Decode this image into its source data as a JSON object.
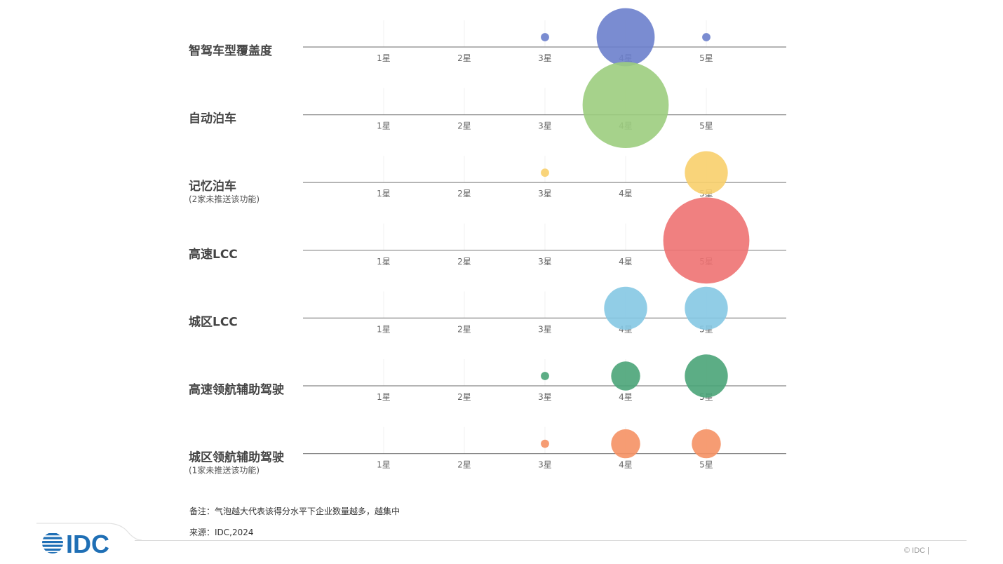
{
  "chart_data": {
    "type": "scatter",
    "subtype": "bubble-strip",
    "x_categories": [
      "1星",
      "2星",
      "3星",
      "4星",
      "5星"
    ],
    "rows": [
      {
        "label": "智驾车型覆盖度",
        "sublabel": "",
        "color": "#6b80cc",
        "points": [
          {
            "x": "3星",
            "size": 0.8
          },
          {
            "x": "4星",
            "size": 10.0
          },
          {
            "x": "5星",
            "size": 0.8
          }
        ]
      },
      {
        "label": "自动泊车",
        "sublabel": "",
        "color": "#9ccd7e",
        "points": [
          {
            "x": "4星",
            "size": 22.0
          }
        ]
      },
      {
        "label": "记忆泊车",
        "sublabel": "(2家未推送该功能)",
        "color": "#f8cf6c",
        "points": [
          {
            "x": "3星",
            "size": 0.8
          },
          {
            "x": "5星",
            "size": 5.5
          }
        ]
      },
      {
        "label": "高速LCC",
        "sublabel": "",
        "color": "#ee7272",
        "points": [
          {
            "x": "5星",
            "size": 22.0
          }
        ]
      },
      {
        "label": "城区LCC",
        "sublabel": "",
        "color": "#85c8e3",
        "points": [
          {
            "x": "4星",
            "size": 5.5
          },
          {
            "x": "5星",
            "size": 5.5
          }
        ]
      },
      {
        "label": "高速领航辅助驾驶",
        "sublabel": "",
        "color": "#4aa478",
        "points": [
          {
            "x": "3星",
            "size": 0.8
          },
          {
            "x": "4星",
            "size": 2.5
          },
          {
            "x": "5星",
            "size": 5.5
          }
        ]
      },
      {
        "label": "城区领航辅助驾驶",
        "sublabel": "(1家未推送该功能)",
        "color": "#f59164",
        "points": [
          {
            "x": "3星",
            "size": 0.8
          },
          {
            "x": "4星",
            "size": 2.5
          },
          {
            "x": "5星",
            "size": 2.5
          }
        ]
      }
    ],
    "grid": true,
    "legend": "none"
  },
  "notes": {
    "remark": "备注：气泡越大代表该得分水平下企业数量越多，越集中",
    "source": "来源：IDC,2024"
  },
  "footer": {
    "logo_text": "IDC",
    "copyright": "© IDC |"
  },
  "colors": {
    "axis": "#888888",
    "label": "#444444",
    "tick": "#666666",
    "logo_blue": "#1f6fb5"
  }
}
